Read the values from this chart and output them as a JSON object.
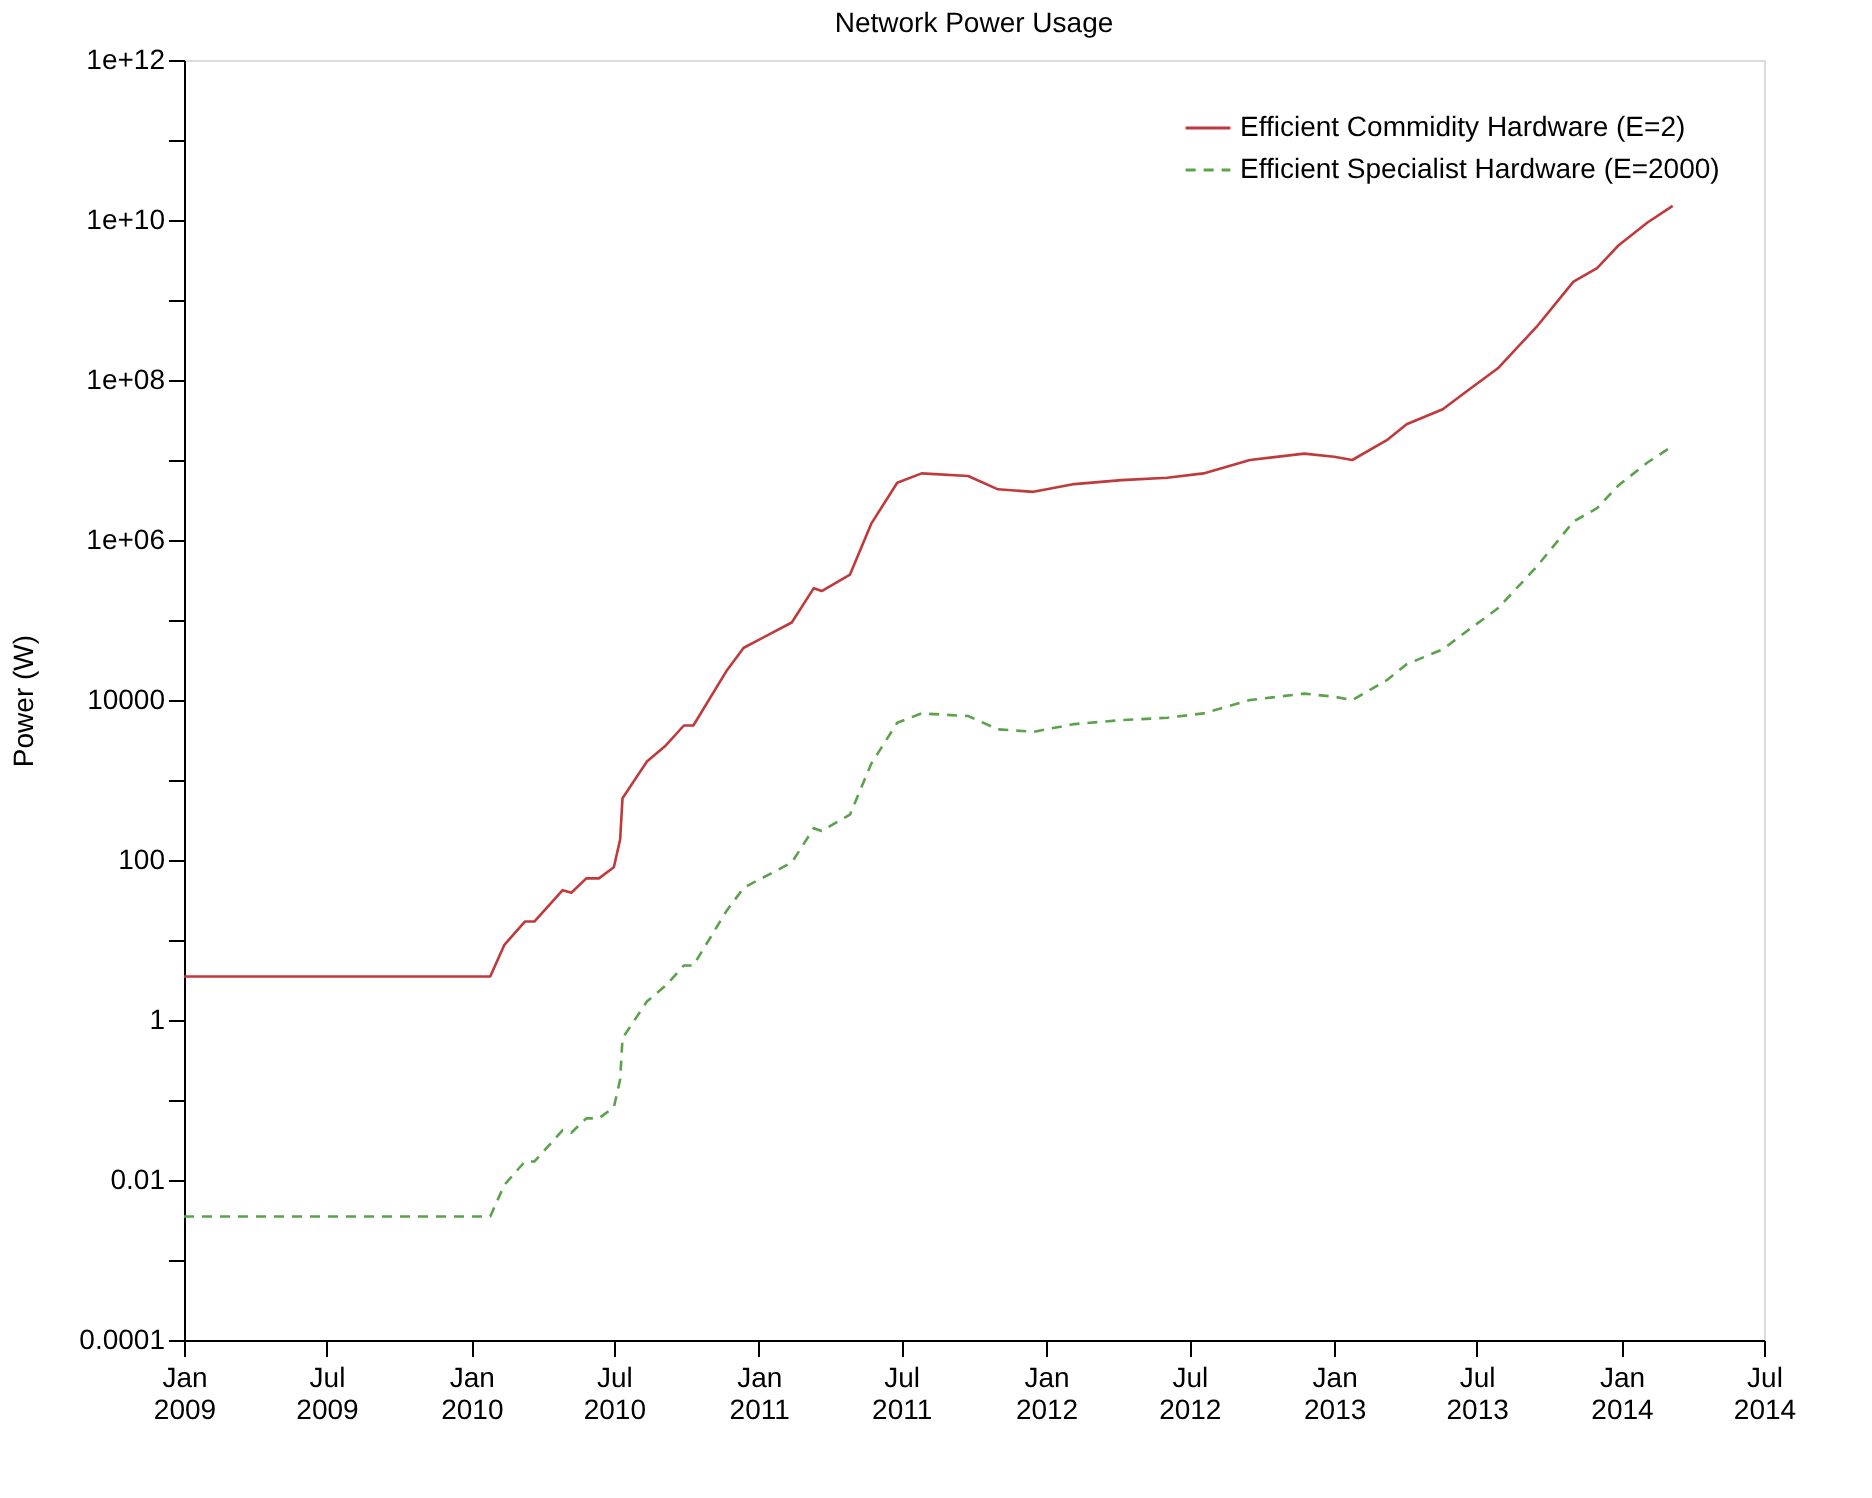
{
  "chart_data": {
    "type": "line",
    "title": "Network Power Usage",
    "ylabel": "Power (W)",
    "log": "y",
    "grid": false,
    "legend": "top right",
    "marker": "none",
    "x": [
      "2009-01-01",
      "2010-01-25",
      "2010-02-12",
      "2010-03-10",
      "2010-03-22",
      "2010-04-27",
      "2010-05-08",
      "2010-05-27",
      "2010-06-12",
      "2010-07-01",
      "2010-07-09",
      "2010-07-12",
      "2010-08-12",
      "2010-09-05",
      "2010-09-28",
      "2010-10-10",
      "2010-11-21",
      "2010-12-13",
      "2011-02-12",
      "2011-03-12",
      "2011-03-22",
      "2011-04-27",
      "2011-05-24",
      "2011-06-26",
      "2011-07-27",
      "2011-09-24",
      "2011-11-01",
      "2011-12-16",
      "2012-02-06",
      "2012-04-06",
      "2012-06-03",
      "2012-07-19",
      "2012-09-16",
      "2012-11-24",
      "2013-01-01",
      "2013-01-24",
      "2013-03-10",
      "2013-04-03",
      "2013-05-19",
      "2013-06-18",
      "2013-07-28",
      "2013-09-15",
      "2013-11-01",
      "2013-12-01",
      "2013-12-28",
      "2014-02-03",
      "2014-03-07"
    ],
    "series": [
      {
        "name": "Efficient Commidity Hardware (E=2)",
        "color": "#c0393b",
        "line_style": "solid",
        "values": [
          3.5,
          3.5,
          8.7,
          17,
          17,
          42,
          39,
          59,
          59,
          81,
          180,
          590,
          1700,
          2700,
          4800,
          4800,
          23000,
          45000,
          93000,
          250000,
          230000,
          370000,
          1600000,
          5200000,
          6800000,
          6300000,
          4300000,
          4000000,
          5000000,
          5600000,
          6000000,
          6800000,
          10000000,
          12000000,
          11000000,
          10000000,
          18000000,
          28000000,
          43000000,
          72000000,
          140000000,
          460000000,
          1700000000,
          2500000000,
          4800000000,
          9300000000,
          15000000000
        ]
      },
      {
        "name": "Efficient Specialist Hardware (E=2000)",
        "color": "#5aa34a",
        "line_style": "dashed",
        "values": [
          0.0035,
          0.0035,
          0.0087,
          0.017,
          0.017,
          0.042,
          0.039,
          0.059,
          0.059,
          0.081,
          0.18,
          0.59,
          1.7,
          2.7,
          4.8,
          4.8,
          23,
          45,
          93,
          250,
          230,
          370,
          1600,
          5200,
          6800,
          6300,
          4300,
          4000,
          5000,
          5600,
          6000,
          6800,
          10000,
          12000,
          11000,
          10000,
          18000,
          28000,
          43000,
          72000,
          140000,
          460000,
          1700000,
          2500000,
          4800000,
          9300000,
          15000000
        ]
      }
    ],
    "xlim": [
      "2009-01-01",
      "2014-07-01"
    ],
    "xticks": [
      {
        "value": "2009-01-01",
        "label": "Jan\n2009"
      },
      {
        "value": "2009-07-01",
        "label": "Jul\n2009"
      },
      {
        "value": "2010-01-01",
        "label": "Jan\n2010"
      },
      {
        "value": "2010-07-01",
        "label": "Jul\n2010"
      },
      {
        "value": "2011-01-01",
        "label": "Jan\n2011"
      },
      {
        "value": "2011-07-01",
        "label": "Jul\n2011"
      },
      {
        "value": "2012-01-01",
        "label": "Jan\n2012"
      },
      {
        "value": "2012-07-01",
        "label": "Jul\n2012"
      },
      {
        "value": "2013-01-01",
        "label": "Jan\n2013"
      },
      {
        "value": "2013-07-01",
        "label": "Jul\n2013"
      },
      {
        "value": "2014-01-01",
        "label": "Jan\n2014"
      },
      {
        "value": "2014-07-01",
        "label": "Jul\n2014"
      }
    ],
    "ylim": [
      0.0001,
      1000000000000
    ],
    "yticks": [
      {
        "value": 0.0001,
        "label": "0.0001"
      },
      {
        "value": 0.001,
        "label": null
      },
      {
        "value": 0.01,
        "label": "0.01"
      },
      {
        "value": 0.1,
        "label": null
      },
      {
        "value": 1,
        "label": "1"
      },
      {
        "value": 10,
        "label": null
      },
      {
        "value": 100,
        "label": "100"
      },
      {
        "value": 1000,
        "label": null
      },
      {
        "value": 10000,
        "label": "10000"
      },
      {
        "value": 100000,
        "label": null
      },
      {
        "value": 1000000,
        "label": "1e+06"
      },
      {
        "value": 10000000,
        "label": null
      },
      {
        "value": 100000000,
        "label": "1e+08"
      },
      {
        "value": 1000000000,
        "label": null
      },
      {
        "value": 10000000000,
        "label": "1e+10"
      },
      {
        "value": 100000000000,
        "label": null
      },
      {
        "value": 1000000000000,
        "label": "1e+12"
      }
    ]
  }
}
